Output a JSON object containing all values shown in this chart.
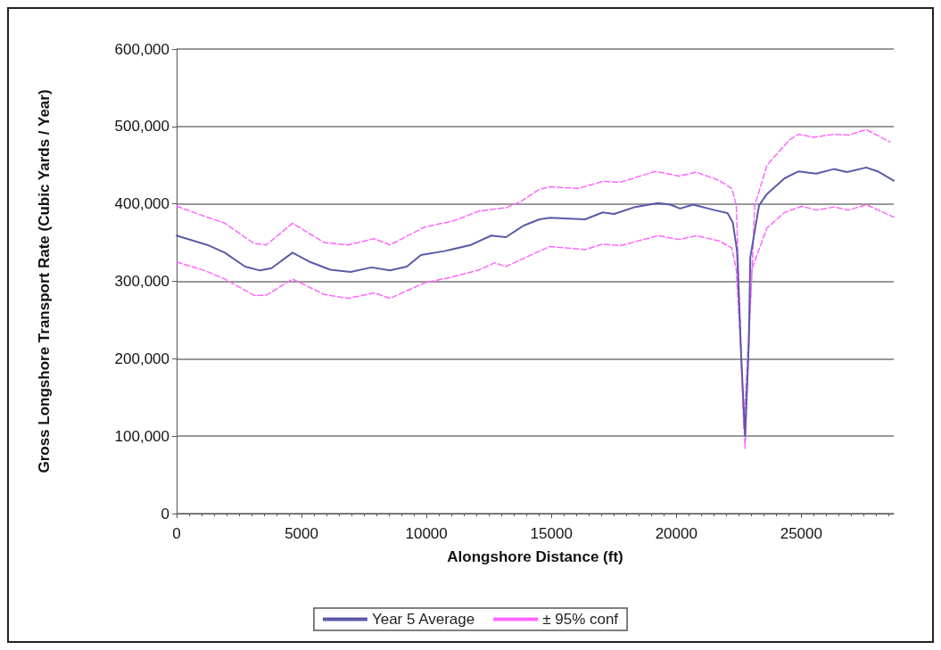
{
  "chart_data": {
    "type": "line",
    "xlabel": "Alongshore Distance (ft)",
    "ylabel": "Gross Longshore Transport Rate (Cubic Yards / Year)",
    "xlim": [
      0,
      28700
    ],
    "xticks": [
      0,
      5000,
      10000,
      15000,
      20000,
      25000
    ],
    "ylim": [
      0,
      600000
    ],
    "yticks": [
      {
        "value": 0,
        "label": "0"
      },
      {
        "value": 100000,
        "label": "100,000"
      },
      {
        "value": 200000,
        "label": "200,000"
      },
      {
        "value": 300000,
        "label": "300,000"
      },
      {
        "value": 400000,
        "label": "400,000"
      },
      {
        "value": 500000,
        "label": "500,000"
      },
      {
        "value": 600000,
        "label": "600,000"
      }
    ],
    "grid": "y",
    "legend": "bottom",
    "marker": "none",
    "series": [
      {
        "name": "Year 5 Average",
        "color": "#5a5aa8",
        "line_style": "solid",
        "x": [
          0,
          1230,
          1930,
          2740,
          3340,
          3800,
          4640,
          5340,
          6150,
          6960,
          7800,
          8540,
          9210,
          9780,
          10720,
          11780,
          12590,
          13180,
          13890,
          14520,
          14940,
          16350,
          17050,
          17510,
          18350,
          19270,
          19760,
          20150,
          20670,
          21520,
          22050,
          22260,
          22430,
          22600,
          22750,
          22900,
          22960,
          23310,
          23630,
          24330,
          24890,
          25600,
          26300,
          26830,
          27600,
          28060,
          28700
        ],
        "values": [
          359000,
          347000,
          337000,
          319000,
          314000,
          317000,
          337000,
          325000,
          315000,
          312000,
          318000,
          314000,
          319000,
          334000,
          339000,
          347000,
          359000,
          357000,
          372000,
          380000,
          382000,
          380000,
          389000,
          387000,
          396000,
          401000,
          399000,
          394000,
          399000,
          392000,
          388000,
          376000,
          339000,
          200000,
          100000,
          220000,
          331000,
          398000,
          413000,
          433000,
          442000,
          439000,
          445000,
          441000,
          447000,
          442000,
          430000
        ]
      },
      {
        "name": "± 95% conf",
        "color": "#ff66ff",
        "line_style": "dashed",
        "x": [
          0,
          1120,
          1930,
          3090,
          3590,
          4640,
          5910,
          6860,
          7910,
          8540,
          9920,
          11080,
          12130,
          13180,
          13780,
          14520,
          14940,
          16100,
          17050,
          17760,
          19160,
          20110,
          20810,
          21730,
          22220,
          22400,
          22600,
          22750,
          22900,
          23140,
          23630,
          24540,
          24890,
          25490,
          26300,
          26900,
          27600,
          28550
        ],
        "values": [
          397000,
          384000,
          375000,
          349000,
          347000,
          375000,
          350000,
          347000,
          355000,
          347000,
          370000,
          378000,
          391000,
          395000,
          403000,
          419000,
          422000,
          420000,
          429000,
          428000,
          442000,
          436000,
          441000,
          430000,
          420000,
          398000,
          200000,
          84000,
          220000,
          398000,
          450000,
          483000,
          490000,
          486000,
          490000,
          489000,
          496000,
          480000
        ]
      },
      {
        "color": "#ff66ff",
        "line_style": "dashed",
        "x": [
          0,
          1120,
          1930,
          3090,
          3590,
          4640,
          5910,
          6860,
          7910,
          8540,
          9920,
          11080,
          12130,
          12730,
          13180,
          14520,
          14940,
          16350,
          17050,
          17760,
          19270,
          20110,
          20810,
          21730,
          22220,
          22400,
          22600,
          22700,
          22850,
          23030,
          23630,
          24330,
          25030,
          25600,
          26300,
          26900,
          27600,
          28700
        ],
        "values": [
          325000,
          314000,
          303000,
          282000,
          282000,
          303000,
          283000,
          278000,
          285000,
          278000,
          298000,
          306000,
          315000,
          324000,
          319000,
          339000,
          345000,
          341000,
          348000,
          346000,
          359000,
          354000,
          359000,
          352000,
          343000,
          315000,
          200000,
          110000,
          200000,
          317000,
          369000,
          389000,
          397000,
          392000,
          396000,
          392000,
          399000,
          383000
        ]
      }
    ]
  }
}
